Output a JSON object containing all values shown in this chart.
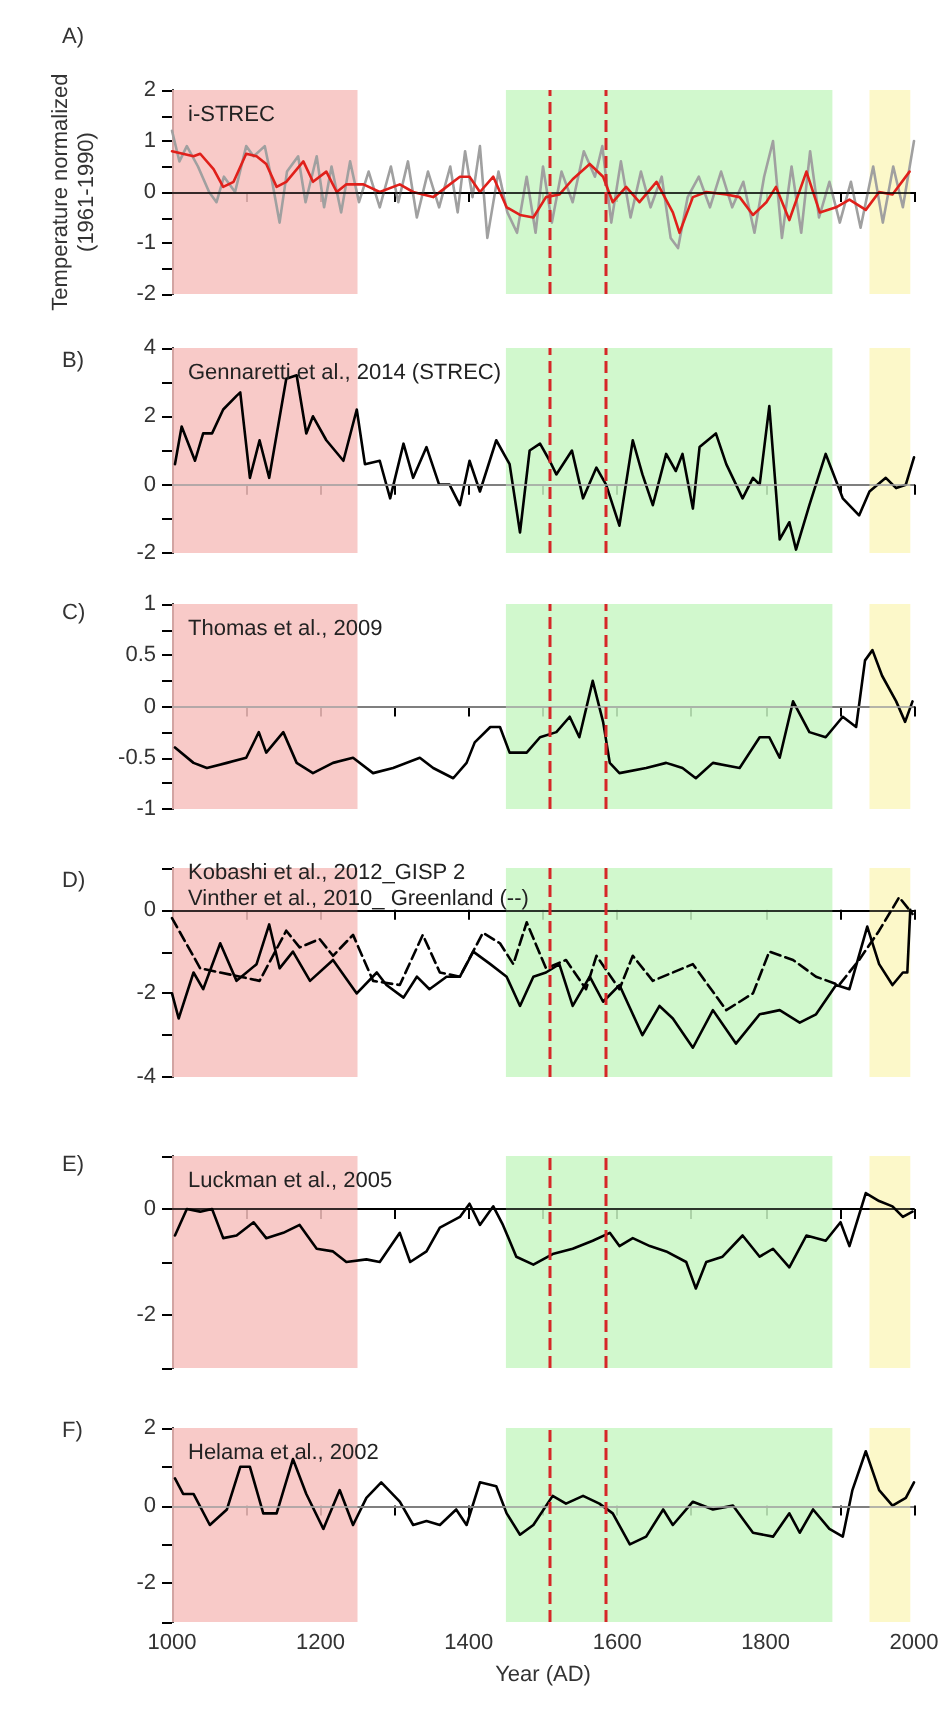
{
  "chart_data": [
    {
      "type": "line",
      "title": "A)",
      "ylabel": "Temperature normalized\n(1961-1990)",
      "annotations": [
        "i-STREC"
      ],
      "xlim": [
        1000,
        2000
      ],
      "xticks": [
        1000,
        {
          "value": 1100,
          "label": null
        },
        1200,
        {
          "value": 1300,
          "label": null
        },
        1400,
        {
          "value": 1500,
          "label": null
        },
        1600,
        {
          "value": 1700,
          "label": null
        },
        1800,
        {
          "value": 1900,
          "label": null
        },
        2000
      ],
      "ylim": [
        -2,
        2
      ],
      "yticks": [
        -2,
        {
          "value": -1.5,
          "label": null
        },
        -1,
        {
          "value": -0.5,
          "label": null
        },
        0,
        {
          "value": 0.5,
          "label": null
        },
        1,
        {
          "value": 1.5,
          "label": null
        },
        2
      ],
      "tick_labels": "y",
      "bands": [
        {
          "axis": "x",
          "from": 1000,
          "to": 1250,
          "color": "#f7c1be"
        },
        {
          "axis": "x",
          "from": 1450,
          "to": 1890,
          "color": "#c9f7c4"
        },
        {
          "axis": "x",
          "from": 1940,
          "to": 1995,
          "color": "#fbf7c0"
        }
      ],
      "ref_lines": [
        {
          "axis": "y",
          "value": 0,
          "color": "#000000",
          "line_style": "solid"
        },
        {
          "axis": "x",
          "value": 1510,
          "color": "#d62728",
          "line_style": "dashed"
        },
        {
          "axis": "x",
          "value": 1585,
          "color": "#d62728",
          "line_style": "dashed"
        }
      ],
      "series": [
        {
          "color": "#a0a0a0",
          "x": [
            1000,
            1010,
            1020,
            1035,
            1050,
            1060,
            1070,
            1085,
            1100,
            1110,
            1125,
            1135,
            1145,
            1155,
            1170,
            1180,
            1195,
            1205,
            1215,
            1228,
            1240,
            1252,
            1265,
            1280,
            1295,
            1305,
            1318,
            1330,
            1345,
            1360,
            1375,
            1385,
            1395,
            1405,
            1415,
            1425,
            1440,
            1452,
            1465,
            1478,
            1490,
            1500,
            1512,
            1525,
            1540,
            1555,
            1570,
            1580,
            1592,
            1605,
            1618,
            1632,
            1645,
            1660,
            1672,
            1682,
            1695,
            1710,
            1725,
            1740,
            1755,
            1770,
            1785,
            1798,
            1810,
            1822,
            1835,
            1848,
            1860,
            1872,
            1886,
            1900,
            1915,
            1928,
            1945,
            1958,
            1972,
            1985,
            2000
          ],
          "values": [
            1.2,
            0.6,
            0.9,
            0.5,
            0.0,
            -0.2,
            0.3,
            0.0,
            0.9,
            0.7,
            0.9,
            0.2,
            -0.6,
            0.4,
            0.7,
            -0.2,
            0.7,
            -0.3,
            0.5,
            -0.4,
            0.6,
            -0.2,
            0.4,
            -0.3,
            0.5,
            -0.2,
            0.6,
            -0.5,
            0.4,
            -0.3,
            0.5,
            -0.4,
            0.8,
            -0.1,
            0.9,
            -0.9,
            0.4,
            -0.4,
            -0.8,
            0.3,
            -0.8,
            0.5,
            -0.6,
            0.4,
            -0.2,
            0.8,
            0.3,
            0.9,
            -0.6,
            0.6,
            -0.5,
            0.4,
            -0.3,
            0.3,
            -0.9,
            -1.1,
            -0.1,
            0.3,
            -0.3,
            0.4,
            -0.3,
            0.2,
            -0.8,
            0.3,
            1.0,
            -0.9,
            0.5,
            -0.8,
            0.8,
            -0.5,
            0.2,
            -0.6,
            0.2,
            -0.7,
            0.5,
            -0.6,
            0.5,
            -0.3,
            1.0
          ]
        },
        {
          "color": "#e0201b",
          "x": [
            1000,
            1029,
            1038,
            1056,
            1069,
            1083,
            1100,
            1114,
            1127,
            1141,
            1154,
            1177,
            1190,
            1208,
            1222,
            1235,
            1258,
            1280,
            1307,
            1325,
            1352,
            1370,
            1388,
            1401,
            1415,
            1433,
            1451,
            1469,
            1487,
            1504,
            1522,
            1540,
            1563,
            1581,
            1594,
            1612,
            1630,
            1653,
            1675,
            1684,
            1702,
            1720,
            1747,
            1765,
            1783,
            1801,
            1814,
            1832,
            1855,
            1873,
            1895,
            1913,
            1935,
            1953,
            1971,
            1994
          ],
          "values": [
            0.8,
            0.7,
            0.75,
            0.45,
            0.1,
            0.2,
            0.75,
            0.7,
            0.55,
            0.1,
            0.2,
            0.6,
            0.2,
            0.4,
            0.0,
            0.15,
            0.15,
            0.0,
            0.15,
            0.0,
            -0.1,
            0.1,
            0.3,
            0.3,
            0.0,
            0.3,
            -0.3,
            -0.45,
            -0.5,
            -0.1,
            -0.05,
            0.25,
            0.55,
            0.3,
            -0.2,
            0.1,
            -0.2,
            0.2,
            -0.4,
            -0.8,
            -0.1,
            0.0,
            -0.05,
            -0.1,
            -0.45,
            -0.2,
            0.1,
            -0.55,
            0.4,
            -0.4,
            -0.3,
            -0.15,
            -0.35,
            0.0,
            -0.05,
            0.4
          ]
        }
      ]
    },
    {
      "type": "line",
      "title": "B)",
      "annotations": [
        "Gennaretti et al., 2014 (STREC)"
      ],
      "xlim": [
        1000,
        2000
      ],
      "xticks": [
        1000,
        {
          "value": 1100,
          "label": null
        },
        1200,
        {
          "value": 1300,
          "label": null
        },
        1400,
        {
          "value": 1500,
          "label": null
        },
        1600,
        {
          "value": 1700,
          "label": null
        },
        1800,
        {
          "value": 1900,
          "label": null
        },
        2000
      ],
      "ylim": [
        -2,
        4
      ],
      "yticks": [
        -2,
        {
          "value": -1,
          "label": null
        },
        0,
        {
          "value": 1,
          "label": null
        },
        2,
        {
          "value": 3,
          "label": null
        },
        4
      ],
      "tick_labels": "y",
      "bands": [
        {
          "axis": "x",
          "from": 1000,
          "to": 1250,
          "color": "#f7c1be"
        },
        {
          "axis": "x",
          "from": 1450,
          "to": 1890,
          "color": "#c9f7c4"
        },
        {
          "axis": "x",
          "from": 1940,
          "to": 1995,
          "color": "#fbf7c0"
        }
      ],
      "ref_lines": [
        {
          "axis": "y",
          "value": 0,
          "color": "#aaaaaa",
          "line_style": "solid"
        },
        {
          "axis": "x",
          "value": 1510,
          "color": "#d62728",
          "line_style": "dashed"
        },
        {
          "axis": "x",
          "value": 1585,
          "color": "#d62728",
          "line_style": "dashed"
        }
      ],
      "series": [
        {
          "color": "#000000",
          "x": [
            1004,
            1013,
            1031,
            1042,
            1054,
            1069,
            1087,
            1092,
            1105,
            1118,
            1131,
            1154,
            1168,
            1181,
            1190,
            1208,
            1231,
            1249,
            1260,
            1280,
            1294,
            1312,
            1325,
            1343,
            1360,
            1374,
            1388,
            1401,
            1415,
            1437,
            1455,
            1469,
            1482,
            1496,
            1509,
            1518,
            1539,
            1554,
            1572,
            1585,
            1603,
            1621,
            1634,
            1648,
            1666,
            1679,
            1688,
            1702,
            1711,
            1733,
            1747,
            1769,
            1783,
            1792,
            1805,
            1819,
            1832,
            1841,
            1859,
            1881,
            1904,
            1926,
            1940,
            1962,
            1976,
            1989,
            2000
          ],
          "values": [
            0.6,
            1.7,
            0.7,
            1.5,
            1.5,
            2.2,
            2.6,
            2.7,
            0.2,
            1.3,
            0.2,
            3.1,
            3.2,
            1.5,
            2.0,
            1.3,
            0.7,
            2.2,
            0.6,
            0.7,
            -0.4,
            1.2,
            0.2,
            1.1,
            0.0,
            0.0,
            -0.6,
            0.7,
            -0.2,
            1.3,
            0.6,
            -1.4,
            1.0,
            1.2,
            0.7,
            0.3,
            1.0,
            -0.4,
            0.5,
            0.0,
            -1.2,
            1.3,
            0.3,
            -0.6,
            0.9,
            0.4,
            0.9,
            -0.7,
            1.1,
            1.5,
            0.6,
            -0.4,
            0.2,
            0.0,
            2.3,
            -1.6,
            -1.1,
            -1.9,
            -0.6,
            0.9,
            -0.4,
            -0.9,
            -0.2,
            0.2,
            -0.1,
            0.0,
            0.8
          ]
        }
      ]
    },
    {
      "type": "line",
      "title": "C)",
      "annotations": [
        "Thomas et al., 2009"
      ],
      "xlim": [
        1000,
        2000
      ],
      "xticks": [
        1000,
        {
          "value": 1100,
          "label": null
        },
        1200,
        {
          "value": 1300,
          "label": null
        },
        1400,
        {
          "value": 1500,
          "label": null
        },
        1600,
        {
          "value": 1700,
          "label": null
        },
        1800,
        {
          "value": 1900,
          "label": null
        },
        2000
      ],
      "ylim": [
        -1,
        1
      ],
      "yticks": [
        -1,
        {
          "value": -0.75,
          "label": null
        },
        -0.5,
        {
          "value": -0.25,
          "label": null
        },
        0,
        {
          "value": 0.25,
          "label": null
        },
        0.5,
        {
          "value": 0.75,
          "label": null
        },
        1
      ],
      "tick_labels": "y",
      "bands": [
        {
          "axis": "x",
          "from": 1000,
          "to": 1250,
          "color": "#f7c1be"
        },
        {
          "axis": "x",
          "from": 1450,
          "to": 1890,
          "color": "#c9f7c4"
        },
        {
          "axis": "x",
          "from": 1940,
          "to": 1995,
          "color": "#fbf7c0"
        }
      ],
      "ref_lines": [
        {
          "axis": "y",
          "value": 0,
          "color": "#aaaaaa",
          "line_style": "solid"
        },
        {
          "axis": "x",
          "value": 1510,
          "color": "#d62728",
          "line_style": "dashed"
        },
        {
          "axis": "x",
          "value": 1585,
          "color": "#d62728",
          "line_style": "dashed"
        }
      ],
      "series": [
        {
          "color": "#000000",
          "x": [
            1004,
            1029,
            1047,
            1074,
            1100,
            1117,
            1127,
            1150,
            1168,
            1190,
            1217,
            1244,
            1271,
            1298,
            1334,
            1352,
            1379,
            1397,
            1408,
            1429,
            1442,
            1455,
            1478,
            1496,
            1518,
            1536,
            1549,
            1567,
            1581,
            1590,
            1603,
            1639,
            1666,
            1688,
            1706,
            1729,
            1765,
            1792,
            1805,
            1819,
            1837,
            1859,
            1881,
            1904,
            1922,
            1934,
            1944,
            1957,
            1976,
            1988,
            1998
          ],
          "values": [
            -0.4,
            -0.55,
            -0.6,
            -0.55,
            -0.5,
            -0.25,
            -0.45,
            -0.25,
            -0.55,
            -0.65,
            -0.55,
            -0.5,
            -0.65,
            -0.6,
            -0.5,
            -0.6,
            -0.7,
            -0.55,
            -0.35,
            -0.2,
            -0.2,
            -0.45,
            -0.45,
            -0.3,
            -0.25,
            -0.1,
            -0.3,
            0.25,
            -0.15,
            -0.55,
            -0.65,
            -0.6,
            -0.55,
            -0.6,
            -0.7,
            -0.55,
            -0.6,
            -0.3,
            -0.3,
            -0.5,
            0.05,
            -0.25,
            -0.3,
            -0.1,
            -0.2,
            0.45,
            0.55,
            0.3,
            0.05,
            -0.15,
            0.05
          ]
        }
      ]
    },
    {
      "type": "line",
      "title": "D)",
      "annotations": [
        "Kobashi et al., 2012_GISP 2",
        "Vinther et al., 2010_ Greenland (--)"
      ],
      "xlim": [
        1000,
        2000
      ],
      "xticks": [
        1000,
        {
          "value": 1100,
          "label": null
        },
        1200,
        {
          "value": 1300,
          "label": null
        },
        1400,
        {
          "value": 1500,
          "label": null
        },
        1600,
        {
          "value": 1700,
          "label": null
        },
        1800,
        {
          "value": 1900,
          "label": null
        },
        2000
      ],
      "ylim": [
        -4,
        1
      ],
      "yticks": [
        -4,
        {
          "value": -3,
          "label": null
        },
        -2,
        {
          "value": -1,
          "label": null
        },
        0,
        {
          "value": 1,
          "label": null
        }
      ],
      "tick_labels": "y",
      "bands": [
        {
          "axis": "x",
          "from": 1000,
          "to": 1250,
          "color": "#f7c1be"
        },
        {
          "axis": "x",
          "from": 1450,
          "to": 1890,
          "color": "#c9f7c4"
        },
        {
          "axis": "x",
          "from": 1940,
          "to": 1995,
          "color": "#fbf7c0"
        }
      ],
      "ref_lines": [
        {
          "axis": "y",
          "value": 0,
          "color": "#000000",
          "line_style": "solid"
        },
        {
          "axis": "x",
          "value": 1510,
          "color": "#d62728",
          "line_style": "dashed"
        },
        {
          "axis": "x",
          "value": 1585,
          "color": "#d62728",
          "line_style": "dashed"
        }
      ],
      "series": [
        {
          "color": "#000000",
          "line_style": "solid",
          "x": [
            1000,
            1009,
            1029,
            1042,
            1065,
            1087,
            1114,
            1131,
            1145,
            1163,
            1186,
            1217,
            1249,
            1276,
            1289,
            1312,
            1330,
            1347,
            1370,
            1388,
            1406,
            1429,
            1451,
            1469,
            1487,
            1504,
            1522,
            1540,
            1563,
            1581,
            1603,
            1634,
            1657,
            1675,
            1702,
            1729,
            1760,
            1792,
            1819,
            1846,
            1868,
            1895,
            1913,
            1937,
            1953,
            1971,
            1985,
            1991,
            1995
          ],
          "values": [
            -2.0,
            -2.6,
            -1.5,
            -1.9,
            -0.8,
            -1.7,
            -1.3,
            -0.35,
            -1.4,
            -1.0,
            -1.7,
            -1.2,
            -2.0,
            -1.5,
            -1.8,
            -2.1,
            -1.6,
            -1.9,
            -1.6,
            -1.6,
            -1.0,
            -1.3,
            -1.6,
            -2.3,
            -1.6,
            -1.5,
            -1.3,
            -2.3,
            -1.6,
            -2.2,
            -1.8,
            -3.0,
            -2.3,
            -2.6,
            -3.3,
            -2.4,
            -3.2,
            -2.5,
            -2.4,
            -2.7,
            -2.5,
            -1.8,
            -1.9,
            -0.4,
            -1.3,
            -1.8,
            -1.5,
            -1.5,
            0.0
          ]
        },
        {
          "color": "#000000",
          "line_style": "dashed",
          "x": [
            1000,
            1038,
            1065,
            1092,
            1118,
            1154,
            1172,
            1199,
            1217,
            1244,
            1271,
            1307,
            1338,
            1361,
            1388,
            1419,
            1442,
            1460,
            1478,
            1504,
            1531,
            1558,
            1572,
            1603,
            1621,
            1648,
            1675,
            1702,
            1747,
            1783,
            1805,
            1837,
            1868,
            1899,
            1926,
            1953,
            1980,
            1998
          ],
          "values": [
            -0.2,
            -1.4,
            -1.5,
            -1.6,
            -1.7,
            -0.5,
            -0.9,
            -0.7,
            -1.1,
            -0.6,
            -1.7,
            -1.8,
            -0.6,
            -1.5,
            -1.6,
            -0.55,
            -0.8,
            -1.3,
            -0.3,
            -1.4,
            -1.2,
            -1.9,
            -1.1,
            -1.9,
            -1.1,
            -1.7,
            -1.5,
            -1.3,
            -2.4,
            -2.0,
            -1.0,
            -1.2,
            -1.6,
            -1.8,
            -1.2,
            -0.5,
            0.3,
            -0.1
          ]
        }
      ]
    },
    {
      "type": "line",
      "title": "E)",
      "annotations": [
        "Luckman et al., 2005"
      ],
      "xlim": [
        1000,
        2000
      ],
      "xticks": [
        1000,
        {
          "value": 1100,
          "label": null
        },
        1200,
        {
          "value": 1300,
          "label": null
        },
        1400,
        {
          "value": 1500,
          "label": null
        },
        1600,
        {
          "value": 1700,
          "label": null
        },
        1800,
        {
          "value": 1900,
          "label": null
        },
        2000
      ],
      "ylim": [
        -3,
        1
      ],
      "yticks": [
        {
          "value": -3,
          "label": null
        },
        -2,
        {
          "value": -1,
          "label": null
        },
        0,
        {
          "value": 1,
          "label": null
        }
      ],
      "tick_labels": "y",
      "bands": [
        {
          "axis": "x",
          "from": 1000,
          "to": 1250,
          "color": "#f7c1be"
        },
        {
          "axis": "x",
          "from": 1450,
          "to": 1890,
          "color": "#c9f7c4"
        },
        {
          "axis": "x",
          "from": 1940,
          "to": 1995,
          "color": "#fbf7c0"
        }
      ],
      "ref_lines": [
        {
          "axis": "y",
          "value": 0,
          "color": "#000000",
          "line_style": "solid"
        },
        {
          "axis": "x",
          "value": 1510,
          "color": "#d62728",
          "line_style": "dashed"
        },
        {
          "axis": "x",
          "value": 1585,
          "color": "#d62728",
          "line_style": "dashed"
        }
      ],
      "series": [
        {
          "color": "#000000",
          "x": [
            1004,
            1020,
            1038,
            1054,
            1069,
            1087,
            1110,
            1127,
            1150,
            1172,
            1195,
            1217,
            1235,
            1262,
            1280,
            1307,
            1321,
            1343,
            1361,
            1388,
            1401,
            1415,
            1433,
            1446,
            1464,
            1487,
            1513,
            1540,
            1567,
            1590,
            1603,
            1621,
            1644,
            1666,
            1693,
            1706,
            1720,
            1742,
            1769,
            1792,
            1810,
            1832,
            1855,
            1881,
            1901,
            1913,
            1935,
            1953,
            1971,
            1985,
            1998
          ],
          "values": [
            -0.5,
            0.0,
            -0.05,
            0.0,
            -0.55,
            -0.5,
            -0.25,
            -0.55,
            -0.45,
            -0.3,
            -0.75,
            -0.8,
            -1.0,
            -0.95,
            -1.0,
            -0.45,
            -1.0,
            -0.8,
            -0.35,
            -0.15,
            0.1,
            -0.3,
            0.05,
            -0.3,
            -0.9,
            -1.05,
            -0.85,
            -0.75,
            -0.6,
            -0.45,
            -0.7,
            -0.55,
            -0.7,
            -0.8,
            -1.0,
            -1.5,
            -1.0,
            -0.9,
            -0.5,
            -0.9,
            -0.75,
            -1.1,
            -0.5,
            -0.6,
            -0.25,
            -0.7,
            0.3,
            0.15,
            0.05,
            -0.15,
            -0.05
          ]
        }
      ]
    },
    {
      "type": "line",
      "title": "F)",
      "xlabel": "Year (AD)",
      "annotations": [
        "Helama et al., 2002"
      ],
      "xlim": [
        1000,
        2000
      ],
      "xticks": [
        1000,
        {
          "value": 1100,
          "label": null
        },
        1200,
        {
          "value": 1300,
          "label": null
        },
        1400,
        {
          "value": 1500,
          "label": null
        },
        1600,
        {
          "value": 1700,
          "label": null
        },
        1800,
        {
          "value": 1900,
          "label": null
        },
        2000
      ],
      "ylim": [
        -3,
        2
      ],
      "yticks": [
        {
          "value": -3,
          "label": null
        },
        -2,
        {
          "value": -1,
          "label": null
        },
        0,
        {
          "value": 1,
          "label": null
        },
        2
      ],
      "bands": [
        {
          "axis": "x",
          "from": 1000,
          "to": 1250,
          "color": "#f7c1be"
        },
        {
          "axis": "x",
          "from": 1450,
          "to": 1890,
          "color": "#c9f7c4"
        },
        {
          "axis": "x",
          "from": 1940,
          "to": 1995,
          "color": "#fbf7c0"
        }
      ],
      "ref_lines": [
        {
          "axis": "y",
          "value": 0,
          "color": "#aaaaaa",
          "line_style": "solid"
        },
        {
          "axis": "x",
          "value": 1510,
          "color": "#d62728",
          "line_style": "dashed"
        },
        {
          "axis": "x",
          "value": 1585,
          "color": "#d62728",
          "line_style": "dashed"
        }
      ],
      "series": [
        {
          "color": "#000000",
          "x": [
            1004,
            1015,
            1029,
            1051,
            1074,
            1092,
            1105,
            1123,
            1141,
            1163,
            1181,
            1204,
            1226,
            1244,
            1262,
            1282,
            1307,
            1325,
            1343,
            1361,
            1383,
            1397,
            1415,
            1437,
            1451,
            1469,
            1487,
            1513,
            1531,
            1554,
            1576,
            1594,
            1617,
            1639,
            1662,
            1675,
            1702,
            1729,
            1756,
            1783,
            1810,
            1832,
            1846,
            1864,
            1886,
            1904,
            1917,
            1935,
            1953,
            1971,
            1989,
            2000
          ],
          "values": [
            0.7,
            0.3,
            0.3,
            -0.5,
            -0.1,
            1.0,
            1.0,
            -0.2,
            -0.2,
            1.2,
            0.3,
            -0.6,
            0.4,
            -0.5,
            0.2,
            0.6,
            0.1,
            -0.5,
            -0.4,
            -0.5,
            -0.1,
            -0.5,
            0.6,
            0.5,
            -0.2,
            -0.75,
            -0.5,
            0.25,
            0.05,
            0.25,
            0.05,
            -0.2,
            -1.0,
            -0.8,
            -0.1,
            -0.5,
            0.1,
            -0.1,
            0.0,
            -0.7,
            -0.8,
            -0.2,
            -0.7,
            -0.1,
            -0.6,
            -0.8,
            0.4,
            1.4,
            0.4,
            0.0,
            0.2,
            0.6
          ]
        }
      ]
    }
  ]
}
